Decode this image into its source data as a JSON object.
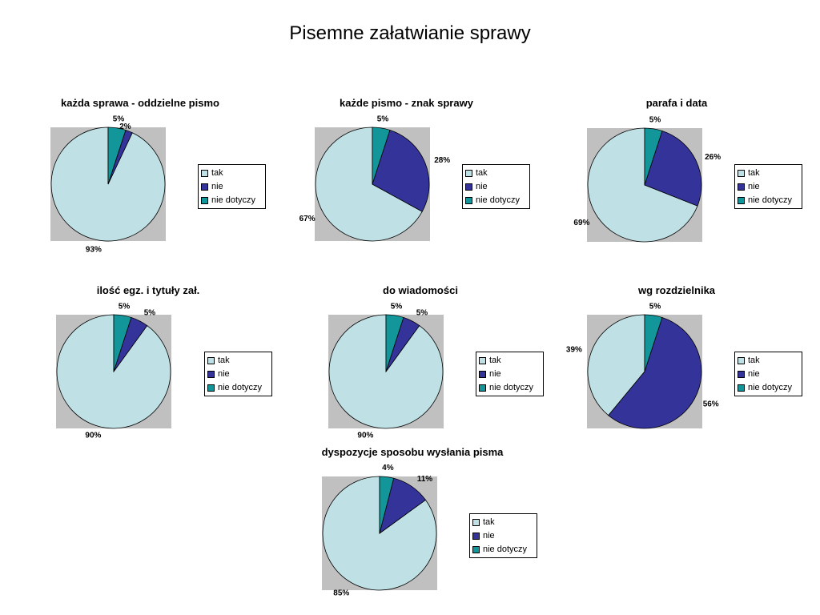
{
  "title": "Pisemne załatwianie sprawy",
  "legend": [
    "tak",
    "nie",
    "nie dotyczy"
  ],
  "colors": {
    "tak": "#bfe0e4",
    "nie": "#33339a",
    "nie_dotyczy": "#13969a",
    "plot_bg": "#c0c0c0"
  },
  "chart_data": [
    {
      "type": "pie",
      "title": "każda sprawa - oddzielne pismo",
      "categories": [
        "tak",
        "nie",
        "nie dotyczy"
      ],
      "values": [
        93,
        2,
        5
      ],
      "labels": [
        "93%",
        "2%",
        "5%"
      ]
    },
    {
      "type": "pie",
      "title": "każde pismo - znak sprawy",
      "categories": [
        "tak",
        "nie",
        "nie dotyczy"
      ],
      "values": [
        67,
        28,
        5
      ],
      "labels": [
        "67%",
        "28%",
        "5%"
      ]
    },
    {
      "type": "pie",
      "title": "parafa i data",
      "categories": [
        "tak",
        "nie",
        "nie dotyczy"
      ],
      "values": [
        69,
        26,
        5
      ],
      "labels": [
        "69%",
        "26%",
        "5%"
      ]
    },
    {
      "type": "pie",
      "title": "ilość egz. i tytuły zał.",
      "categories": [
        "tak",
        "nie",
        "nie dotyczy"
      ],
      "values": [
        90,
        5,
        5
      ],
      "labels": [
        "90%",
        "5%",
        "5%"
      ]
    },
    {
      "type": "pie",
      "title": "do wiadomości",
      "categories": [
        "tak",
        "nie",
        "nie dotyczy"
      ],
      "values": [
        90,
        5,
        5
      ],
      "labels": [
        "90%",
        "5%",
        "5%"
      ]
    },
    {
      "type": "pie",
      "title": "wg rozdzielnika",
      "categories": [
        "tak",
        "nie",
        "nie dotyczy"
      ],
      "values": [
        39,
        56,
        5
      ],
      "labels": [
        "39%",
        "56%",
        "5%"
      ]
    },
    {
      "type": "pie",
      "title": "dyspozycje sposobu wysłania pisma",
      "categories": [
        "tak",
        "nie",
        "nie dotyczy"
      ],
      "values": [
        85,
        11,
        4
      ],
      "labels": [
        "85%",
        "11%",
        "4%"
      ]
    }
  ]
}
